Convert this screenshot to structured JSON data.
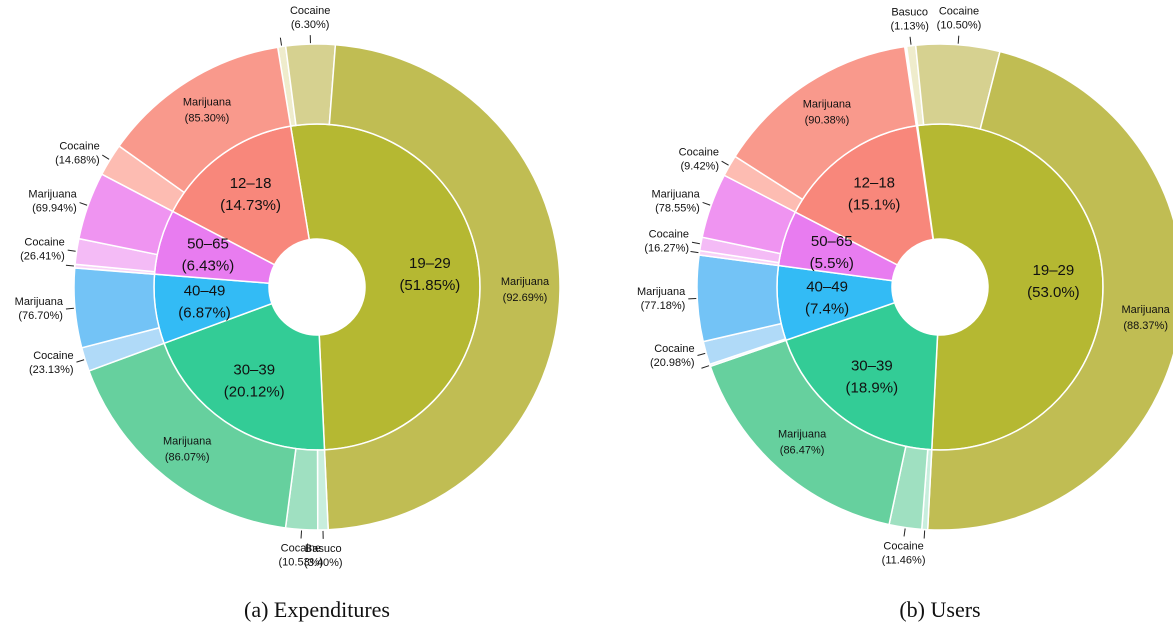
{
  "chart_data": [
    {
      "type": "sunburst",
      "caption": "(a) Expenditures",
      "groups": [
        {
          "name": "19–29",
          "value": 51.85,
          "value_label": "(51.85%)",
          "color": "#b5b832",
          "children": {
            "categories": [
              null,
              "Cocaine",
              "Marijuana"
            ],
            "values": [
              1.01,
              6.3,
              92.69
            ],
            "value_labels": [
              null,
              "(6.30%)",
              "(92.69%)"
            ],
            "colors": [
              "#efeccc",
              "#d6d190",
              "#c0bd53"
            ]
          }
        },
        {
          "name": "30–39",
          "value": 20.12,
          "value_label": "(20.12%)",
          "color": "#33cc96",
          "children": {
            "categories": [
              "Basuco",
              "Cocaine",
              "Marijuana"
            ],
            "values": [
              3.4,
              10.53,
              86.07
            ],
            "value_labels": [
              "(3.40%)",
              "(10.53%)",
              "(86.07%)"
            ],
            "colors": [
              "#c8eedd",
              "#9fe0c1",
              "#66d09e"
            ]
          }
        },
        {
          "name": "40–49",
          "value": 6.87,
          "value_label": "(6.87%)",
          "color": "#33bbf5",
          "children": {
            "categories": [
              "Cocaine",
              "Marijuana"
            ],
            "values": [
              23.13,
              76.7
            ],
            "value_labels": [
              "(23.13%)",
              "(76.70%)"
            ],
            "colors": [
              "#b0daf8",
              "#73c3f6"
            ]
          }
        },
        {
          "name": "50–65",
          "value": 6.43,
          "value_label": "(6.43%)",
          "color": "#e87cf0",
          "children": {
            "categories": [
              null,
              "Cocaine",
              "Marijuana"
            ],
            "values": [
              3.65,
              26.41,
              69.94
            ],
            "value_labels": [
              null,
              "(26.41%)",
              "(69.94%)"
            ],
            "colors": [
              "#f8d3f8",
              "#f4bbf6",
              "#ef94f1"
            ]
          }
        },
        {
          "name": "12–18",
          "value": 14.73,
          "value_label": "(14.73%)",
          "color": "#f8877b",
          "children": {
            "categories": [
              "Cocaine",
              "Marijuana"
            ],
            "values": [
              14.68,
              85.3
            ],
            "value_labels": [
              "(14.68%)",
              "(85.30%)"
            ],
            "colors": [
              "#fdbcb2",
              "#f9998c"
            ]
          }
        }
      ]
    },
    {
      "type": "sunburst",
      "caption": "(b) Users",
      "groups": [
        {
          "name": "19–29",
          "value": 53.0,
          "value_label": "(53.0%)",
          "color": "#b5b832",
          "children": {
            "categories": [
              "Basuco",
              "Cocaine",
              "Marijuana"
            ],
            "values": [
              1.13,
              10.5,
              88.37
            ],
            "value_labels": [
              "(1.13%)",
              "(10.50%)",
              "(88.37%)"
            ],
            "colors": [
              "#efeccc",
              "#d6d190",
              "#c0bd53"
            ]
          }
        },
        {
          "name": "30–39",
          "value": 18.9,
          "value_label": "(18.9%)",
          "color": "#33cc96",
          "children": {
            "categories": [
              null,
              "Cocaine",
              "Marijuana"
            ],
            "values": [
              2.07,
              11.46,
              86.47
            ],
            "value_labels": [
              null,
              "(11.46%)",
              "(86.47%)"
            ],
            "colors": [
              "#c8eedd",
              "#9fe0c1",
              "#66d09e"
            ]
          }
        },
        {
          "name": "40–49",
          "value": 7.4,
          "value_label": "(7.4%)",
          "color": "#33bbf5",
          "children": {
            "categories": [
              null,
              "Cocaine",
              "Marijuana"
            ],
            "values": [
              1.84,
              20.98,
              77.18
            ],
            "value_labels": [
              null,
              "(20.98%)",
              "(77.18%)"
            ],
            "colors": [
              "#e0f0fc",
              "#b0daf8",
              "#73c3f6"
            ]
          }
        },
        {
          "name": "50–65",
          "value": 5.5,
          "value_label": "(5.5%)",
          "color": "#e87cf0",
          "children": {
            "categories": [
              null,
              "Cocaine",
              "Marijuana"
            ],
            "values": [
              5.18,
              16.27,
              78.55
            ],
            "value_labels": [
              null,
              "(16.27%)",
              "(78.55%)"
            ],
            "colors": [
              "#f8d3f8",
              "#f4bbf6",
              "#ef94f1"
            ]
          }
        },
        {
          "name": "12–18",
          "value": 15.1,
          "value_label": "(15.1%)",
          "color": "#f8877b",
          "children": {
            "categories": [
              "Cocaine",
              "Marijuana"
            ],
            "values": [
              9.42,
              90.38
            ],
            "value_labels": [
              "(9.42%)",
              "(90.38%)"
            ],
            "colors": [
              "#fdbcb2",
              "#f9998c"
            ]
          }
        }
      ]
    }
  ]
}
